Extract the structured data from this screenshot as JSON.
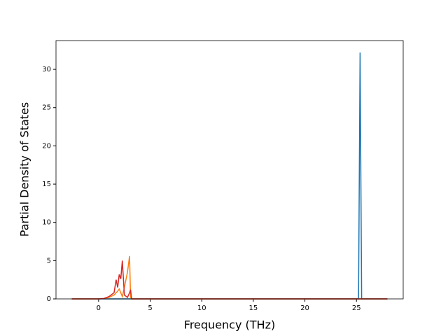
{
  "chart_data": {
    "type": "line",
    "xlabel": "Frequency (THz)",
    "ylabel": "Partial Density of States",
    "x": [
      -2.6,
      -1,
      0,
      0.5,
      1.0,
      1.5,
      1.7,
      1.85,
      2.0,
      2.15,
      2.3,
      2.5,
      2.8,
      3.0,
      3.1,
      3.2,
      5,
      25.2,
      25.35,
      25.5,
      28
    ],
    "series": [
      {
        "color": "#1f77b4",
        "values": [
          0,
          0,
          0,
          0,
          0,
          0,
          0,
          0,
          0,
          0,
          0,
          0,
          0,
          0,
          0,
          0,
          0,
          0,
          32.2,
          0,
          0
        ]
      },
      {
        "color": "#ff7f0e",
        "values": [
          0,
          0,
          0,
          0.05,
          0.2,
          0.5,
          0.8,
          1.0,
          1.3,
          0.8,
          0.3,
          1.5,
          3.5,
          5.6,
          0.2,
          0,
          0,
          0,
          0,
          0,
          0
        ]
      },
      {
        "color": "#d62728",
        "values": [
          0,
          0,
          0,
          0.05,
          0.3,
          0.8,
          2.5,
          1.5,
          3.2,
          2.6,
          5.0,
          0.5,
          0.2,
          0.8,
          1.2,
          0,
          0,
          0,
          0,
          0,
          0
        ]
      }
    ],
    "xlim": [
      -4.13,
      29.53
    ],
    "xticks": [
      0,
      5,
      10,
      15,
      20,
      25
    ],
    "ylim": [
      0,
      33.76
    ],
    "yticks": [
      0,
      5,
      10,
      15,
      20,
      25,
      30
    ]
  }
}
